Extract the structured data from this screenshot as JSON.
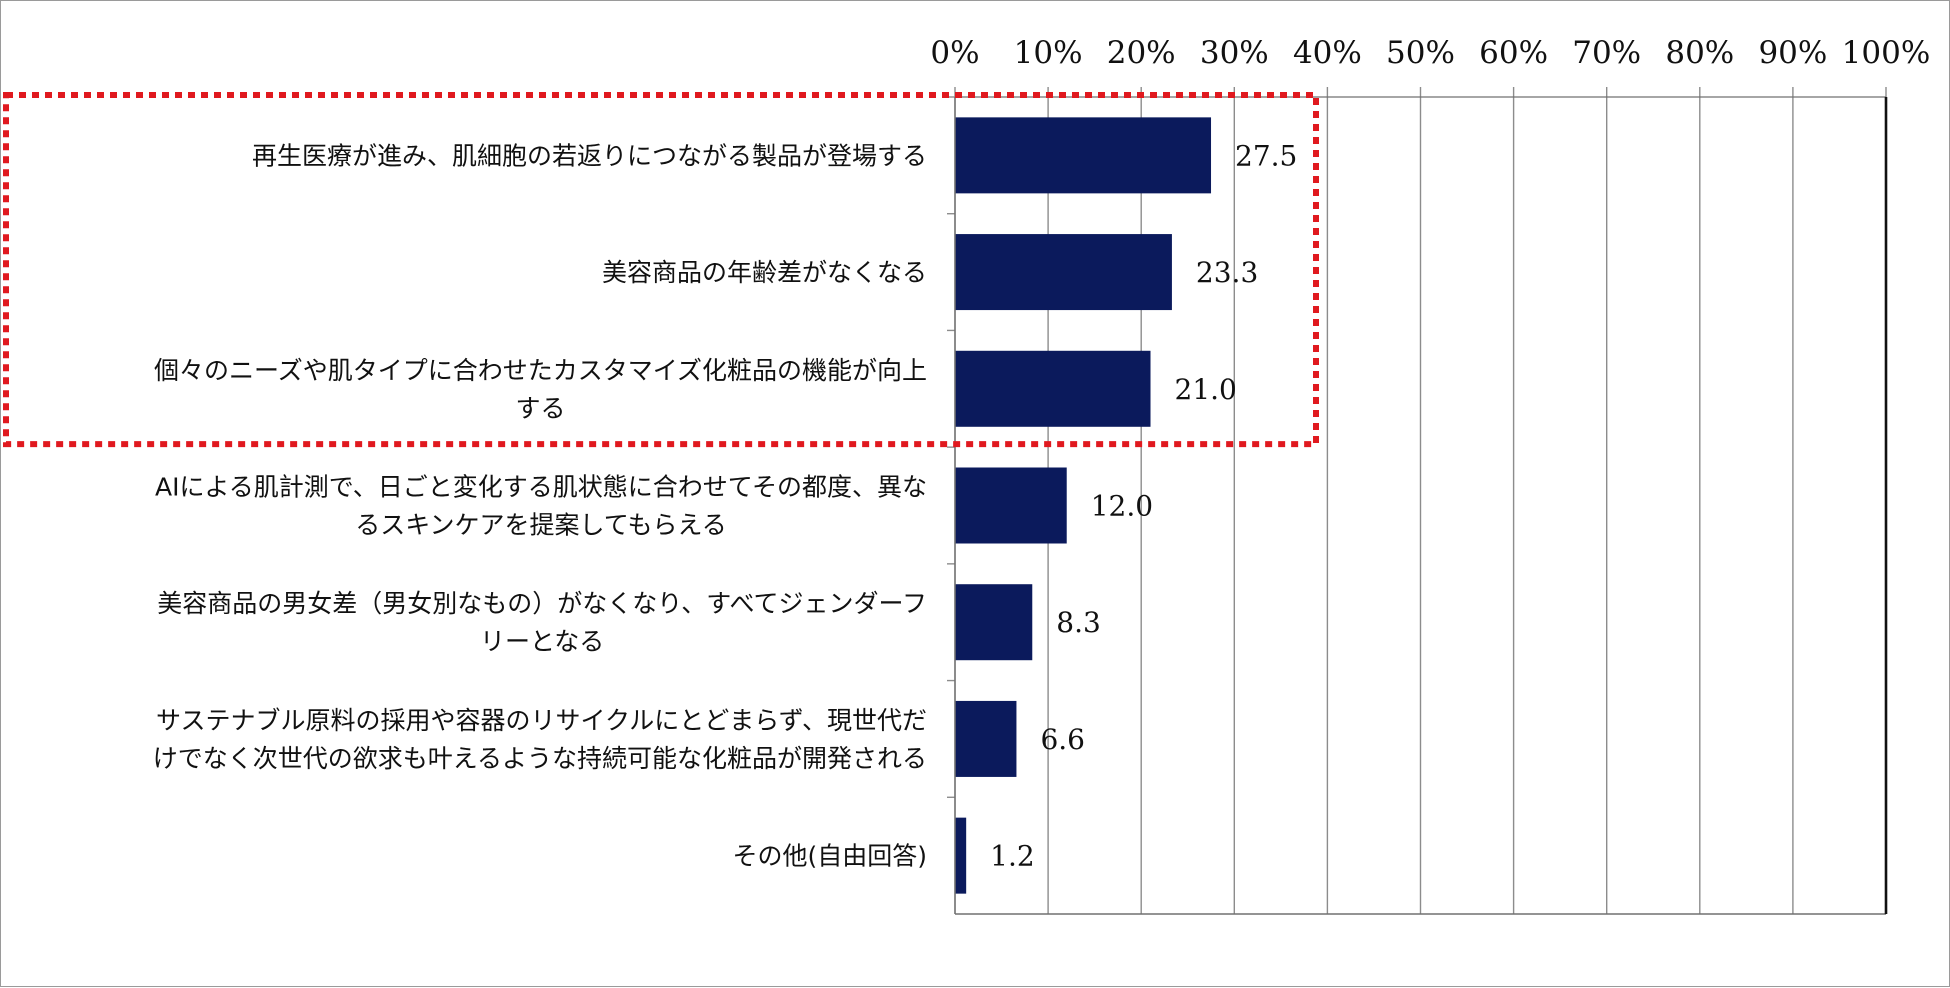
{
  "chart_data": {
    "type": "bar",
    "orientation": "horizontal",
    "categories": [
      [
        "再生医療が進み、肌細胞の若返りにつながる製品が登場する"
      ],
      [
        "美容商品の年齢差がなくなる"
      ],
      [
        "個々のニーズや肌タイプに合わせたカスタマイズ化粧品の機能が向上",
        "する"
      ],
      [
        "AIによる肌計測で、日ごと変化する肌状態に合わせてその都度、異な",
        "るスキンケアを提案してもらえる"
      ],
      [
        "美容商品の男女差（男女別なもの）がなくなり、すべてジェンダーフ",
        "リーとなる"
      ],
      [
        "サステナブル原料の採用や容器のリサイクルにとどまらず、現世代だ",
        "けでなく次世代の欲求も叶えるような持続可能な化粧品が開発される"
      ],
      [
        "その他(自由回答)"
      ]
    ],
    "values": [
      27.5,
      23.3,
      21.0,
      12.0,
      8.3,
      6.6,
      1.2
    ],
    "value_labels": [
      "27.5",
      "23.3",
      "21.0",
      "12.0",
      "8.3",
      "6.6",
      "1.2"
    ],
    "xlim": [
      0,
      100
    ],
    "x_ticks": [
      "0%",
      "10%",
      "20%",
      "30%",
      "40%",
      "50%",
      "60%",
      "70%",
      "80%",
      "90%",
      "100%"
    ],
    "x_axis_position": "top",
    "grid": true,
    "bar_color": "#0b1a5c",
    "gridline_color": "#8c8c8c",
    "highlight": {
      "categories": [
        0,
        1,
        2
      ],
      "style": "dotted",
      "color": "#e0191f"
    }
  }
}
